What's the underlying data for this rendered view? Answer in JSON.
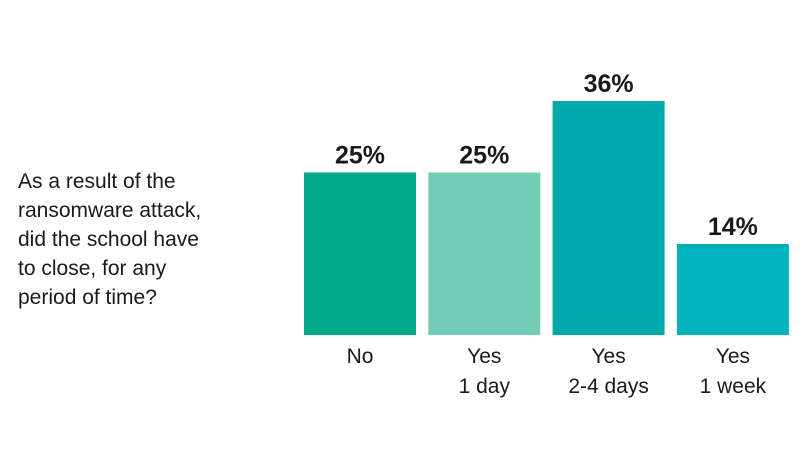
{
  "chart_data": {
    "type": "bar",
    "title": "As a result of the ransomware attack, did the school have to close, for any period of time?",
    "title_lines": [
      "As a result of the",
      "ransomware attack,",
      "did the school have",
      "to close, for any",
      "period of time?"
    ],
    "categories": [
      [
        "No"
      ],
      [
        "Yes",
        "1 day"
      ],
      [
        "Yes",
        "2-4 days"
      ],
      [
        "Yes",
        "1 week"
      ]
    ],
    "values": [
      25,
      25,
      36,
      14
    ],
    "labels": [
      "25%",
      "25%",
      "36%",
      "14%"
    ],
    "colors": [
      "#00A88C",
      "#74CCB6",
      "#00AAAA",
      "#00B2BC"
    ],
    "ylim": [
      0,
      36
    ],
    "xlabel": "",
    "ylabel": "",
    "grid": false
  }
}
